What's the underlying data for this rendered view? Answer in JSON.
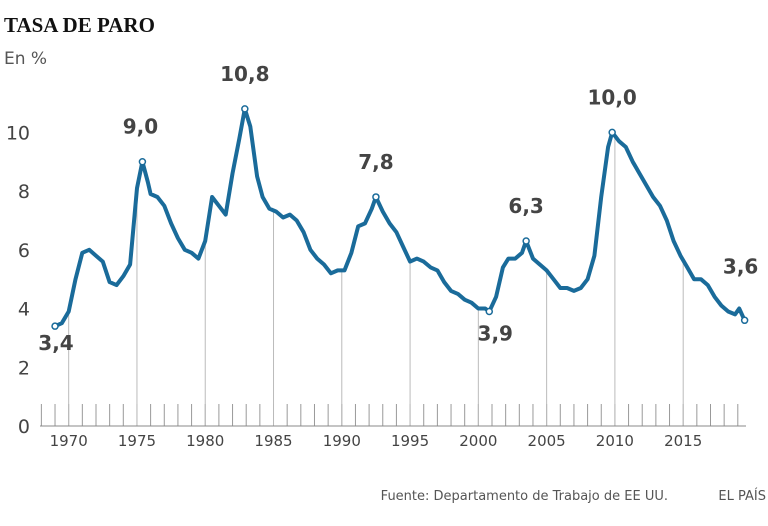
{
  "chart_data": {
    "type": "line",
    "title": "TASA DE PARO",
    "subtitle": "En %",
    "source": "Fuente: Departamento de Trabajo de EE UU.",
    "brand": "EL PAÍS",
    "color": "#1a6b9a",
    "x": [
      1969.0,
      1969.5,
      1970.0,
      1970.5,
      1971.0,
      1971.5,
      1972.0,
      1972.5,
      1973.0,
      1973.5,
      1974.0,
      1974.5,
      1975.0,
      1975.4,
      1975.8,
      1976.0,
      1976.5,
      1977.0,
      1977.5,
      1978.0,
      1978.5,
      1979.0,
      1979.5,
      1980.0,
      1980.5,
      1981.0,
      1981.5,
      1982.0,
      1982.5,
      1982.9,
      1983.3,
      1983.8,
      1984.2,
      1984.7,
      1985.2,
      1985.7,
      1986.2,
      1986.7,
      1987.2,
      1987.7,
      1988.2,
      1988.7,
      1989.2,
      1989.7,
      1990.2,
      1990.7,
      1991.2,
      1991.7,
      1992.2,
      1992.5,
      1993.0,
      1993.5,
      1994.0,
      1994.5,
      1995.0,
      1995.5,
      1996.0,
      1996.5,
      1997.0,
      1997.5,
      1998.0,
      1998.5,
      1999.0,
      1999.5,
      2000.0,
      2000.5,
      2000.8,
      2001.3,
      2001.8,
      2002.2,
      2002.7,
      2003.2,
      2003.5,
      2004.0,
      2004.5,
      2005.0,
      2005.5,
      2006.0,
      2006.5,
      2007.0,
      2007.5,
      2008.0,
      2008.5,
      2009.0,
      2009.5,
      2009.8,
      2010.3,
      2010.8,
      2011.3,
      2011.8,
      2012.3,
      2012.8,
      2013.3,
      2013.8,
      2014.3,
      2014.8,
      2015.3,
      2015.8,
      2016.3,
      2016.8,
      2017.3,
      2017.8,
      2018.3,
      2018.8,
      2019.1,
      2019.5
    ],
    "values": [
      3.4,
      3.5,
      3.9,
      5.0,
      5.9,
      6.0,
      5.8,
      5.6,
      4.9,
      4.8,
      5.1,
      5.5,
      8.1,
      9.0,
      8.3,
      7.9,
      7.8,
      7.5,
      6.9,
      6.4,
      6.0,
      5.9,
      5.7,
      6.3,
      7.8,
      7.5,
      7.2,
      8.6,
      9.8,
      10.8,
      10.2,
      8.5,
      7.8,
      7.4,
      7.3,
      7.1,
      7.2,
      7.0,
      6.6,
      6.0,
      5.7,
      5.5,
      5.2,
      5.3,
      5.3,
      5.9,
      6.8,
      6.9,
      7.4,
      7.8,
      7.3,
      6.9,
      6.6,
      6.1,
      5.6,
      5.7,
      5.6,
      5.4,
      5.3,
      4.9,
      4.6,
      4.5,
      4.3,
      4.2,
      4.0,
      4.0,
      3.9,
      4.4,
      5.4,
      5.7,
      5.7,
      5.9,
      6.3,
      5.7,
      5.5,
      5.3,
      5.0,
      4.7,
      4.7,
      4.6,
      4.7,
      5.0,
      5.8,
      7.8,
      9.5,
      10.0,
      9.7,
      9.5,
      9.0,
      8.6,
      8.2,
      7.8,
      7.5,
      7.0,
      6.3,
      5.8,
      5.4,
      5.0,
      5.0,
      4.8,
      4.4,
      4.1,
      3.9,
      3.8,
      4.0,
      3.6
    ],
    "xlim": [
      1967.9,
      2019.6
    ],
    "ylim": [
      0,
      11
    ],
    "xticks": [
      1970,
      1975,
      1980,
      1985,
      1990,
      1995,
      2000,
      2005,
      2010,
      2015
    ],
    "xminor": [
      1968,
      1969,
      1970,
      1971,
      1972,
      1973,
      1974,
      1975,
      1976,
      1977,
      1978,
      1979,
      1980,
      1981,
      1982,
      1983,
      1984,
      1985,
      1986,
      1987,
      1988,
      1989,
      1990,
      1991,
      1992,
      1993,
      1994,
      1995,
      1996,
      1997,
      1998,
      1999,
      2000,
      2001,
      2002,
      2003,
      2004,
      2005,
      2006,
      2007,
      2008,
      2009,
      2010,
      2011,
      2012,
      2013,
      2014,
      2015,
      2016,
      2017,
      2018,
      2019
    ],
    "yticks": [
      0,
      2,
      4,
      6,
      8,
      10
    ],
    "annotations": [
      {
        "x": 1969.0,
        "y": 3.4,
        "label": "3,4"
      },
      {
        "x": 1975.4,
        "y": 9.0,
        "label": "9,0"
      },
      {
        "x": 1982.9,
        "y": 10.8,
        "label": "10,8"
      },
      {
        "x": 1992.5,
        "y": 7.8,
        "label": "7,8"
      },
      {
        "x": 2000.8,
        "y": 3.9,
        "label": "3,9"
      },
      {
        "x": 2003.5,
        "y": 6.3,
        "label": "6,3"
      },
      {
        "x": 2009.8,
        "y": 10.0,
        "label": "10,0"
      },
      {
        "x": 2019.5,
        "y": 3.6,
        "label": "3,6"
      }
    ]
  }
}
